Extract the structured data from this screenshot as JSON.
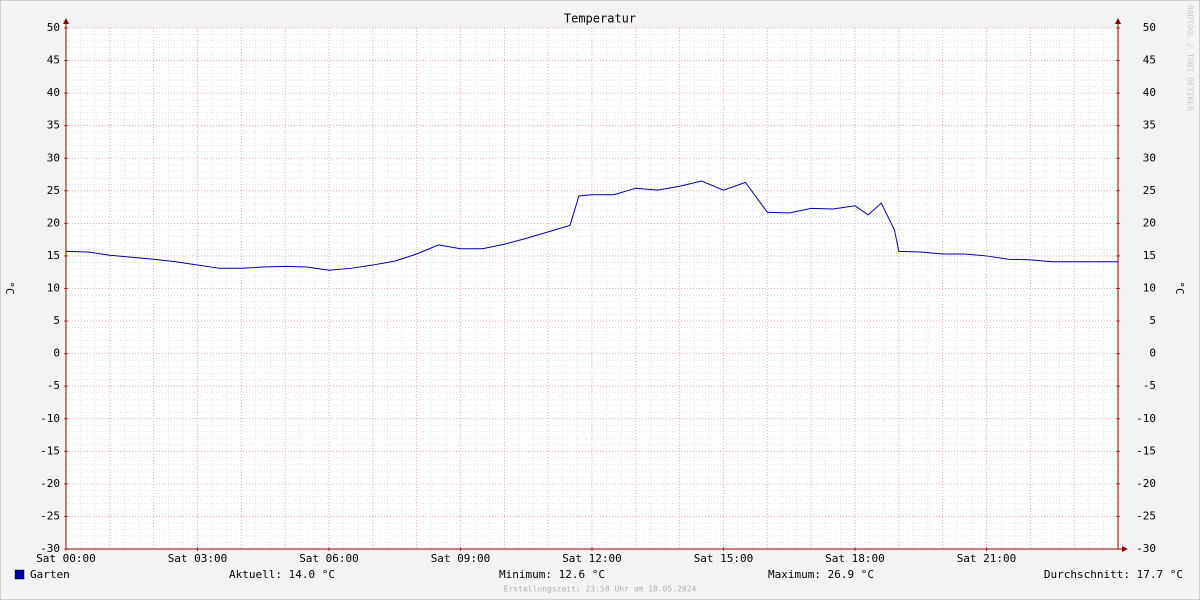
{
  "chart_data": {
    "type": "line",
    "title": "Temperatur",
    "ylabel": "°C",
    "y2label": "°C",
    "watermark": "RRDTOOL / TOBI OETIKER",
    "x": [
      0,
      0.5,
      1,
      1.5,
      2,
      2.5,
      3,
      3.5,
      4,
      4.5,
      5,
      5.5,
      6,
      6.5,
      7,
      7.5,
      8,
      8.5,
      9,
      9.5,
      10,
      10.5,
      11,
      11.5,
      11.7,
      12,
      12.5,
      13,
      13.5,
      14,
      14.5,
      15,
      15.5,
      16,
      16.5,
      17,
      17.5,
      18,
      18.3,
      18.6,
      18.9,
      19,
      19.5,
      20,
      20.5,
      21,
      21.5,
      22,
      22.5,
      23,
      23.5,
      24
    ],
    "series": [
      {
        "name": "Garten",
        "color": "#0000a0",
        "values": [
          15.7,
          15.6,
          15.1,
          14.8,
          14.5,
          14.1,
          13.6,
          13.1,
          13.1,
          13.3,
          13.4,
          13.3,
          12.8,
          13.1,
          13.6,
          14.2,
          15.3,
          16.7,
          16.1,
          16.1,
          16.8,
          17.7,
          18.7,
          19.7,
          24.2,
          24.4,
          24.4,
          25.4,
          25.1,
          25.7,
          26.5,
          25.1,
          26.3,
          21.7,
          21.6,
          22.3,
          22.2,
          22.7,
          21.3,
          23.1,
          19.0,
          15.7,
          15.6,
          15.3,
          15.3,
          15.0,
          14.5,
          14.4,
          14.1,
          14.1,
          14.1,
          14.1
        ]
      }
    ],
    "xlim": [
      0,
      24
    ],
    "xticks": [
      {
        "value": 0,
        "label": "Sat 00:00"
      },
      {
        "value": 3,
        "label": "Sat 03:00"
      },
      {
        "value": 6,
        "label": "Sat 06:00"
      },
      {
        "value": 9,
        "label": "Sat 09:00"
      },
      {
        "value": 12,
        "label": "Sat 12:00"
      },
      {
        "value": 15,
        "label": "Sat 15:00"
      },
      {
        "value": 18,
        "label": "Sat 18:00"
      },
      {
        "value": 21,
        "label": "Sat 21:00"
      }
    ],
    "ylim": [
      -30,
      50
    ],
    "yticks": [
      50,
      45,
      40,
      35,
      30,
      25,
      20,
      15,
      10,
      5,
      0,
      -5,
      -10,
      -15,
      -20,
      -25,
      -30
    ],
    "y2lim": [
      -30,
      50
    ],
    "y2ticks": [
      50,
      45,
      40,
      35,
      30,
      25,
      20,
      15,
      10,
      5,
      0,
      -5,
      -10,
      -15,
      -20,
      -25,
      -30
    ],
    "grid": true,
    "stats": [
      "Aktuell: 14.0 °C",
      "Minimum: 12.6 °C",
      "Maximum: 26.9 °C",
      "Durchschnitt: 17.7 °C"
    ],
    "footer": "Erstellungszeit: 23:58 Uhr am 18.05.2024"
  }
}
